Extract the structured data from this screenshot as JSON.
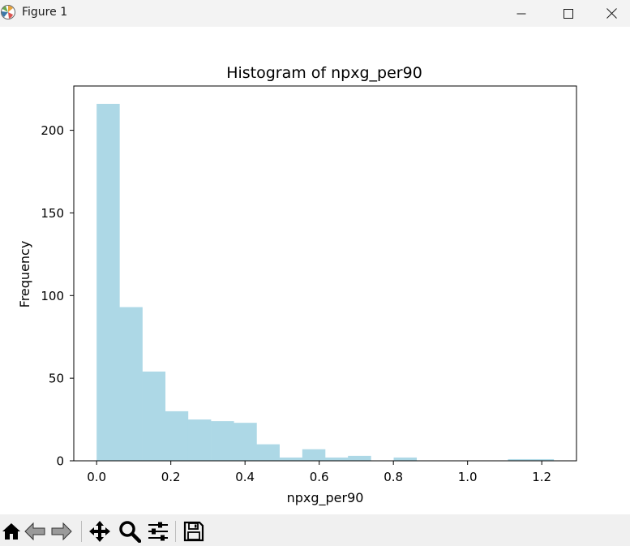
{
  "window": {
    "title": "Figure 1",
    "icons": [
      "matplotlib-logo-icon",
      "minimize-icon",
      "maximize-icon",
      "close-icon"
    ]
  },
  "toolbar": {
    "buttons": [
      "home-icon",
      "back-icon",
      "forward-icon",
      "pan-icon",
      "zoom-icon",
      "configure-subplots-icon",
      "save-icon"
    ]
  },
  "chart_data": {
    "type": "bar",
    "title": "Histogram of npxg_per90",
    "xlabel": "npxg_per90",
    "ylabel": "Frequency",
    "bar_color": "#add8e6",
    "bin_edges": [
      0.0,
      0.0616,
      0.1232,
      0.1848,
      0.2464,
      0.308,
      0.3696,
      0.4312,
      0.4928,
      0.5544,
      0.616,
      0.6776,
      0.7392,
      0.8008,
      0.8624,
      0.924,
      0.9856,
      1.0472,
      1.1088,
      1.1704,
      1.232
    ],
    "values": [
      216,
      93,
      54,
      30,
      25,
      24,
      23,
      10,
      2,
      7,
      2,
      3,
      0,
      2,
      0,
      0,
      0,
      0,
      1,
      1
    ],
    "xlim": [
      -0.0616,
      1.2936
    ],
    "ylim": [
      0,
      226.8
    ],
    "xticks": [
      0.0,
      0.2,
      0.4,
      0.6,
      0.8,
      1.0,
      1.2
    ],
    "xtick_labels": [
      "0.0",
      "0.2",
      "0.4",
      "0.6",
      "0.8",
      "1.0",
      "1.2"
    ],
    "yticks": [
      0,
      50,
      100,
      150,
      200
    ],
    "ytick_labels": [
      "0",
      "50",
      "100",
      "150",
      "200"
    ],
    "grid": false,
    "legend": "none"
  }
}
